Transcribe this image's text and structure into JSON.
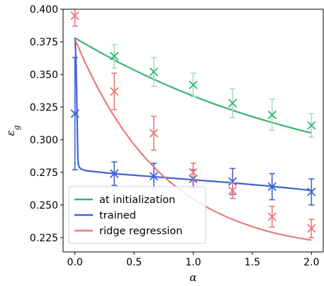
{
  "chart_data": {
    "type": "line",
    "xlabel": "α",
    "ylabel": "εg",
    "xlim": [
      -0.1,
      2.1
    ],
    "ylim": [
      0.214,
      0.4
    ],
    "x_ticks": [
      "0.0",
      "0.5",
      "1.0",
      "1.5",
      "2.0"
    ],
    "x_tick_values": [
      0.0,
      0.5,
      1.0,
      1.5,
      2.0
    ],
    "y_ticks": [
      "0.225",
      "0.250",
      "0.275",
      "0.300",
      "0.325",
      "0.350",
      "0.375",
      "0.400"
    ],
    "y_tick_values": [
      0.225,
      0.25,
      0.275,
      0.3,
      0.325,
      0.35,
      0.375,
      0.4
    ],
    "grid": false,
    "legend_position": "lower-left",
    "series": [
      {
        "name": "at initialization",
        "color": "#3cb371",
        "marker_color": "#3cb371",
        "errorbar_color": "#a8dcc0",
        "curve": {
          "x": [
            0.0,
            0.05,
            0.1,
            0.2,
            0.3,
            0.4,
            0.5,
            0.6,
            0.7,
            0.8,
            0.9,
            1.0,
            1.1,
            1.2,
            1.3,
            1.4,
            1.5,
            1.6,
            1.7,
            1.8,
            1.9,
            2.0
          ],
          "y": [
            0.378,
            0.3753,
            0.3727,
            0.3676,
            0.3627,
            0.3579,
            0.3534,
            0.3491,
            0.3449,
            0.3409,
            0.3371,
            0.3335,
            0.33,
            0.3267,
            0.3236,
            0.3205,
            0.3177,
            0.3149,
            0.3123,
            0.3098,
            0.3074,
            0.3051
          ]
        },
        "points": {
          "x": [
            0.333,
            0.667,
            1.0,
            1.333,
            1.667,
            2.0
          ],
          "y": [
            0.364,
            0.352,
            0.342,
            0.328,
            0.319,
            0.311
          ],
          "err": [
            0.009,
            0.011,
            0.009,
            0.011,
            0.012,
            0.009
          ]
        }
      },
      {
        "name": "trained",
        "color": "#3d64d6",
        "marker_color": "#3d64d6",
        "errorbar_color": "#3d64d6",
        "curve": {
          "x": [
            0.0,
            0.005,
            0.01,
            0.015,
            0.02,
            0.025,
            0.03,
            0.04,
            0.06,
            0.1,
            0.2,
            0.3,
            0.4,
            0.5,
            0.6,
            0.7,
            0.8,
            0.9,
            1.0,
            1.1,
            1.2,
            1.3,
            1.4,
            1.5,
            1.6,
            1.7,
            1.8,
            1.9,
            2.0
          ],
          "y": [
            0.378,
            0.37,
            0.357,
            0.335,
            0.31,
            0.285,
            0.2805,
            0.2785,
            0.2772,
            0.2762,
            0.2752,
            0.2743,
            0.2735,
            0.2728,
            0.2721,
            0.2714,
            0.2707,
            0.27,
            0.2693,
            0.2686,
            0.2679,
            0.2672,
            0.2664,
            0.2656,
            0.2648,
            0.2639,
            0.263,
            0.2621,
            0.2611
          ]
        },
        "points": {
          "x": [
            0.0,
            0.333,
            0.667,
            1.0,
            1.333,
            1.667,
            2.0
          ],
          "y": [
            0.32,
            0.274,
            0.272,
            0.27,
            0.268,
            0.264,
            0.26
          ],
          "err": [
            0.043,
            0.009,
            0.01,
            0.007,
            0.01,
            0.01,
            0.01
          ]
        }
      },
      {
        "name": "ridge regression",
        "color": "#eb7a7a",
        "marker_color": "#eb7a7a",
        "errorbar_color": "#eb7a7a",
        "curve": {
          "x": [
            0.0,
            0.05,
            0.1,
            0.15,
            0.2,
            0.3,
            0.4,
            0.5,
            0.6,
            0.7,
            0.8,
            0.9,
            1.0,
            1.1,
            1.2,
            1.3,
            1.4,
            1.5,
            1.6,
            1.7,
            1.8,
            1.9,
            2.0
          ],
          "y": [
            0.377,
            0.3665,
            0.3566,
            0.3473,
            0.3385,
            0.3225,
            0.3085,
            0.2962,
            0.2855,
            0.2761,
            0.2679,
            0.2607,
            0.2545,
            0.249,
            0.2443,
            0.2401,
            0.2365,
            0.2334,
            0.2306,
            0.2282,
            0.2262,
            0.2245,
            0.223
          ]
        },
        "points": {
          "x": [
            0.0,
            0.333,
            0.667,
            1.0,
            1.333,
            1.667,
            2.0
          ],
          "y": [
            0.395,
            0.337,
            0.305,
            0.275,
            0.261,
            0.241,
            0.232
          ],
          "err": [
            0.008,
            0.014,
            0.013,
            0.007,
            0.006,
            0.008,
            0.007
          ]
        }
      }
    ]
  }
}
